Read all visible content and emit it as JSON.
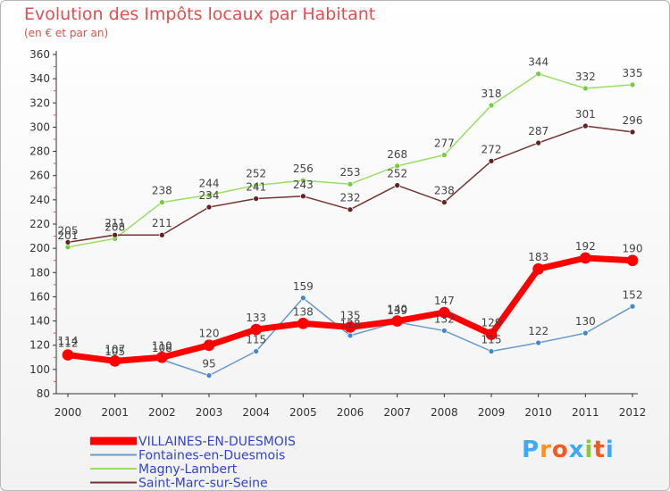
{
  "header": {
    "title": "Evolution des Impôts locaux par Habitant",
    "subtitle": "(en € et par an)"
  },
  "logo": {
    "text": "Proxiti",
    "letter_colors": [
      "#3fa9f5",
      "#f7931e",
      "#f15a24",
      "#3fa9f5",
      "#8cc63f",
      "#f15a24",
      "#3fa9f5"
    ]
  },
  "chart_data": {
    "type": "line",
    "x": [
      "2000",
      "2001",
      "2002",
      "2003",
      "2004",
      "2005",
      "2006",
      "2007",
      "2008",
      "2009",
      "2010",
      "2011",
      "2012"
    ],
    "ylim": [
      80,
      360
    ],
    "yticks": [
      80,
      100,
      120,
      140,
      160,
      180,
      200,
      220,
      240,
      260,
      280,
      300,
      320,
      340,
      360
    ],
    "grid": false,
    "legend": "bottom-left",
    "series": [
      {
        "name": "Magny-Lambert",
        "color": "#99dd66",
        "point_color": "#77cc44",
        "values": [
          201,
          208,
          238,
          244,
          252,
          256,
          253,
          268,
          277,
          318,
          344,
          332,
          335
        ]
      },
      {
        "name": "Saint-Marc-sur-Seine",
        "color": "#773333",
        "point_color": "#662222",
        "values": [
          205,
          211,
          211,
          234,
          241,
          243,
          232,
          252,
          238,
          272,
          287,
          301,
          296
        ]
      },
      {
        "name": "Fontaines-en-Duesmois",
        "color": "#6699cc",
        "point_color": "#4488cc",
        "values": [
          114,
          105,
          108,
          95,
          115,
          159,
          128,
          139,
          132,
          115,
          122,
          130,
          152
        ]
      },
      {
        "name": "VILLAINES-EN-DUESMOIS",
        "color": "#ff0000",
        "point_color": "#ff0000",
        "values": [
          112,
          107,
          110,
          120,
          133,
          138,
          135,
          140,
          147,
          129,
          183,
          192,
          190
        ]
      }
    ],
    "legend_order": [
      "VILLAINES-EN-DUESMOIS",
      "Fontaines-en-Duesmois",
      "Magny-Lambert",
      "Saint-Marc-sur-Seine"
    ]
  }
}
